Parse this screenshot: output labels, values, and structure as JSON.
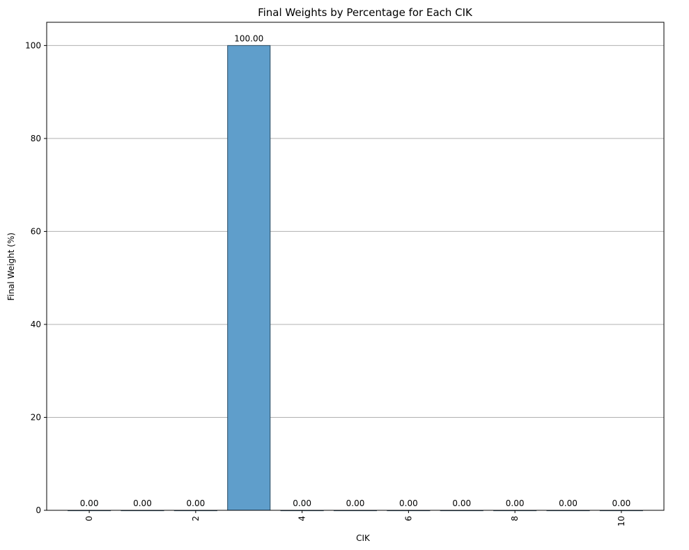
{
  "chart_data": {
    "type": "bar",
    "title": "Final Weights by Percentage for Each CIK",
    "xlabel": "CIK",
    "ylabel": "Final Weight (%)",
    "categories": [
      0,
      1,
      2,
      3,
      4,
      5,
      6,
      7,
      8,
      9,
      10
    ],
    "values": [
      0,
      0,
      0,
      100,
      0,
      0,
      0,
      0,
      0,
      0,
      0
    ],
    "data_labels": [
      "0.00",
      "0.00",
      "0.00",
      "100.00",
      "0.00",
      "0.00",
      "0.00",
      "0.00",
      "0.00",
      "0.00",
      "0.00"
    ],
    "x_ticks": [
      "0",
      "2",
      "4",
      "6",
      "8",
      "10"
    ],
    "x_tick_values": [
      0,
      2,
      4,
      6,
      8,
      10
    ],
    "y_ticks": [
      "0",
      "20",
      "40",
      "60",
      "80",
      "100"
    ],
    "y_tick_values": [
      0,
      20,
      40,
      60,
      80,
      100
    ],
    "ylim": [
      0,
      105
    ],
    "xlim": [
      -0.8,
      10.8
    ],
    "grid": "y",
    "bar_color": "#5f9ecb",
    "bar_edge_color": "#2b4a60"
  }
}
